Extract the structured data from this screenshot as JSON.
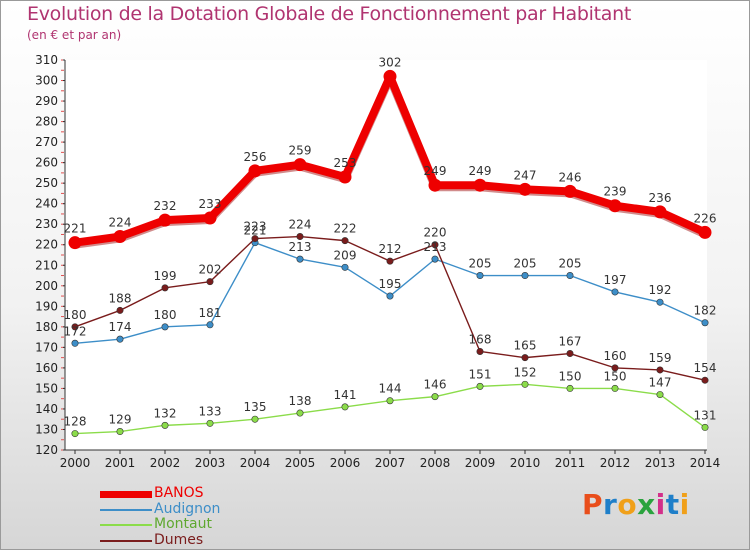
{
  "header": {
    "title": "Evolution de la Dotation Globale de Fonctionnement par Habitant",
    "subtitle": "(en € et par an)"
  },
  "logo": {
    "text": "Proxiti",
    "colors": [
      "#e94e1b",
      "#1f7fc9",
      "#f0a01a",
      "#2aa33e",
      "#d32f8a",
      "#1f7fc9",
      "#f0a01a"
    ]
  },
  "chart_data": {
    "type": "line",
    "x": [
      "2000",
      "2001",
      "2002",
      "2003",
      "2004",
      "2005",
      "2006",
      "2007",
      "2008",
      "2009",
      "2010",
      "2011",
      "2012",
      "2013",
      "2014"
    ],
    "ylim": [
      120,
      310
    ],
    "yticks": [
      120,
      130,
      140,
      150,
      160,
      170,
      180,
      190,
      200,
      210,
      220,
      230,
      240,
      250,
      260,
      270,
      280,
      290,
      300,
      310
    ],
    "grid": false,
    "legend": "bottom-left",
    "series": [
      {
        "name": "BANOS",
        "color": "#ee0000",
        "values": [
          221,
          224,
          232,
          233,
          256,
          259,
          253,
          302,
          249,
          249,
          247,
          246,
          239,
          236,
          226
        ]
      },
      {
        "name": "Audignon",
        "color": "#3d8ec8",
        "values": [
          172,
          174,
          180,
          181,
          221,
          213,
          209,
          195,
          213,
          205,
          205,
          205,
          197,
          192,
          182
        ]
      },
      {
        "name": "Montaut",
        "color": "#8bdc4a",
        "values": [
          128,
          129,
          132,
          133,
          135,
          138,
          141,
          144,
          146,
          151,
          152,
          150,
          150,
          147,
          131
        ]
      },
      {
        "name": "Dumes",
        "color": "#7a1c1c",
        "values": [
          180,
          188,
          199,
          202,
          223,
          224,
          222,
          212,
          220,
          168,
          165,
          167,
          160,
          159,
          154
        ]
      }
    ]
  }
}
